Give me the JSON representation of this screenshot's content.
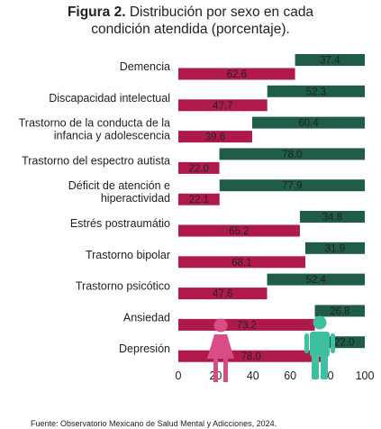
{
  "title": {
    "figure": "Figura 2.",
    "line1": "Distribución por sexo en cada",
    "line2": "condición atendida (porcentaje)."
  },
  "source": "Fuente: Observatorio Mexicano de Salud Mental y Adicciones, 2024.",
  "colors": {
    "male": "#1f5c4a",
    "female": "#b01a4a",
    "male_icon": "#3dbfa0",
    "female_icon": "#d94d86"
  },
  "chart_data": {
    "type": "bar",
    "orientation": "horizontal",
    "categories": [
      [
        "Demencia"
      ],
      [
        "Discapacidad intelectual"
      ],
      [
        "Trastorno de la conducta de la",
        "infancia y adolescencia"
      ],
      [
        "Trastorno del espectro autista"
      ],
      [
        "Déficit de atención e",
        "hiperactividad"
      ],
      [
        "Estrés postraumátio"
      ],
      [
        "Trastorno bipolar"
      ],
      [
        "Trastorno psicótico"
      ],
      [
        "Ansiedad"
      ],
      [
        "Depresión"
      ]
    ],
    "series": [
      {
        "key": "male",
        "values": [
          37.4,
          52.3,
          60.4,
          78.0,
          77.9,
          34.8,
          31.9,
          52.4,
          26.8,
          22.0
        ],
        "labels": [
          "37.4",
          "52.3",
          "60.4",
          "78.0",
          "77.9",
          "34.8",
          "31.9",
          "52.4",
          "26.8",
          "22.0"
        ]
      },
      {
        "key": "female",
        "values": [
          62.6,
          47.7,
          39.6,
          22.0,
          22.1,
          65.2,
          68.1,
          47.6,
          73.2,
          78.0
        ],
        "labels": [
          "62.6",
          "47.7",
          "39.6",
          "22.0",
          "22.1",
          "65.2",
          "68.1",
          "47.6",
          "73.2",
          "78.0"
        ]
      }
    ],
    "xlim": [
      0,
      100
    ],
    "xticks": [
      "0",
      "20",
      "40",
      "60",
      "80",
      "100"
    ],
    "male_bar_anchor": "right",
    "female_bar_anchor": "left",
    "legend": "icons (female, male) at bottom-right"
  }
}
